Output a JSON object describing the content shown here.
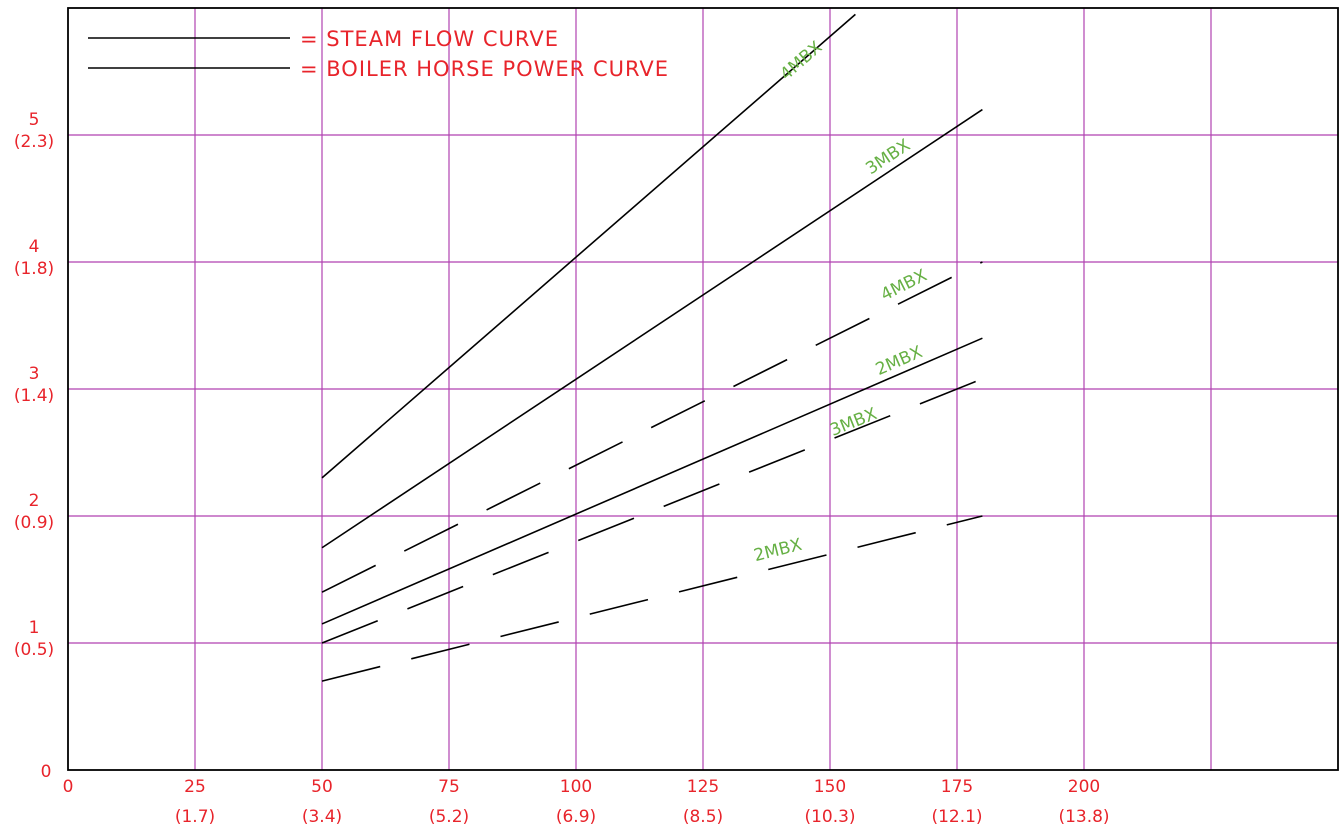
{
  "chart_data": {
    "type": "line",
    "title": "",
    "xlabel": "",
    "ylabel": "",
    "xlim": [
      0,
      250
    ],
    "ylim": [
      0,
      6
    ],
    "grid": true,
    "x_ticks": [
      {
        "value": 0,
        "label": "0",
        "sub": ""
      },
      {
        "value": 25,
        "label": "25",
        "sub": "(1.7)"
      },
      {
        "value": 50,
        "label": "50",
        "sub": "(3.4)"
      },
      {
        "value": 75,
        "label": "75",
        "sub": "(5.2)"
      },
      {
        "value": 100,
        "label": "100",
        "sub": "(6.9)"
      },
      {
        "value": 125,
        "label": "125",
        "sub": "(8.5)"
      },
      {
        "value": 150,
        "label": "150",
        "sub": "(10.3)"
      },
      {
        "value": 175,
        "label": "175",
        "sub": "(12.1)"
      },
      {
        "value": 200,
        "label": "200",
        "sub": "(13.8)"
      }
    ],
    "x_extra_gridlines": [
      225
    ],
    "y_ticks": [
      {
        "value": 0,
        "label": "0",
        "sub": ""
      },
      {
        "value": 1,
        "label": "1",
        "sub": "(0.5)"
      },
      {
        "value": 2,
        "label": "2",
        "sub": "(0.9)"
      },
      {
        "value": 3,
        "label": "3",
        "sub": "(1.4)"
      },
      {
        "value": 4,
        "label": "4",
        "sub": "(1.8)"
      },
      {
        "value": 5,
        "label": "5",
        "sub": "(2.3)"
      }
    ],
    "legend": {
      "placement": "top-left",
      "entries": [
        {
          "label": "= STEAM FLOW CURVE",
          "style": "solid"
        },
        {
          "label": "= BOILER HORSE POWER CURVE",
          "style": "solid"
        }
      ]
    },
    "series": [
      {
        "name": "4MBX",
        "style": "solid",
        "x": [
          50,
          155
        ],
        "y": [
          2.3,
          5.95
        ],
        "label_at": 145,
        "label_offset": -0.05
      },
      {
        "name": "3MBX",
        "style": "solid",
        "x": [
          50,
          180
        ],
        "y": [
          1.75,
          5.2
        ],
        "label_at": 162,
        "label_offset": 0.07
      },
      {
        "name": "4MBX",
        "style": "dashed",
        "x": [
          50,
          180
        ],
        "y": [
          1.4,
          4.0
        ],
        "label_at": 165,
        "label_offset": 0.08
      },
      {
        "name": "2MBX",
        "style": "solid",
        "x": [
          50,
          180
        ],
        "y": [
          1.15,
          3.4
        ],
        "label_at": 164,
        "label_offset": 0.06
      },
      {
        "name": "3MBX",
        "style": "dashed",
        "x": [
          50,
          180
        ],
        "y": [
          1.0,
          3.08
        ],
        "label_at": 155,
        "label_offset": 0.02
      },
      {
        "name": "2MBX",
        "style": "dashed",
        "x": [
          50,
          180
        ],
        "y": [
          0.7,
          2.0
        ],
        "label_at": 140,
        "label_offset": 0.09
      }
    ],
    "colors": {
      "axis": "#000000",
      "grid": "#b042b0",
      "tick_text": "#e8242b",
      "curve": "#000000",
      "curve_label": "#66b044"
    }
  }
}
